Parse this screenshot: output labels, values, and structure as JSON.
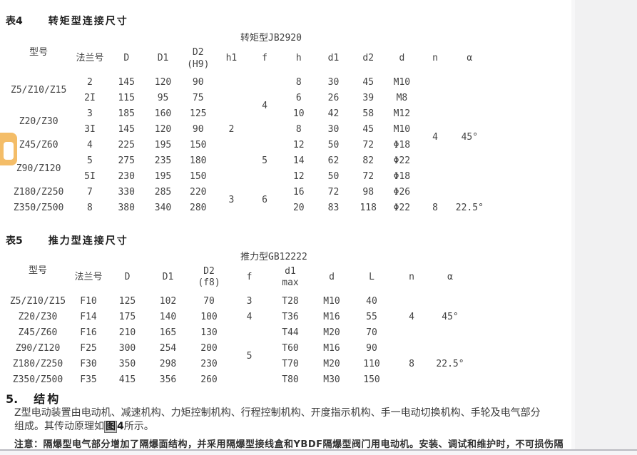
{
  "table4": {
    "caption_label": "表4",
    "caption_title": "转矩型连接尺寸",
    "subtitle": "转矩型JB2920",
    "headers": [
      "型号",
      "法兰号",
      "D",
      "D1",
      "D2\n(H9)",
      "h1",
      "f",
      "h",
      "d1",
      "d2",
      "d",
      "n",
      "α"
    ],
    "rows": [
      [
        {
          "t": "Z5/Z10/Z15",
          "rs": 2
        },
        {
          "t": "2"
        },
        {
          "t": "145"
        },
        {
          "t": "120"
        },
        {
          "t": "90"
        },
        {
          "t": "2",
          "rs": 7
        },
        {
          "t": "4",
          "rs": 4
        },
        {
          "t": "8"
        },
        {
          "t": "30"
        },
        {
          "t": "45"
        },
        {
          "t": "M10"
        },
        {
          "t": "4",
          "rs": 8
        },
        {
          "t": "45°",
          "rs": 8
        }
      ],
      [
        {
          "t": "2I"
        },
        {
          "t": "115"
        },
        {
          "t": "95"
        },
        {
          "t": "75"
        },
        {
          "t": "6"
        },
        {
          "t": "26"
        },
        {
          "t": "39"
        },
        {
          "t": "M8"
        }
      ],
      [
        {
          "t": "Z20/Z30",
          "rs": 2
        },
        {
          "t": "3"
        },
        {
          "t": "185"
        },
        {
          "t": "160"
        },
        {
          "t": "125"
        },
        {
          "t": "10"
        },
        {
          "t": "42"
        },
        {
          "t": "58"
        },
        {
          "t": "M12"
        }
      ],
      [
        {
          "t": "3I"
        },
        {
          "t": "145"
        },
        {
          "t": "120"
        },
        {
          "t": "90"
        },
        {
          "t": "8"
        },
        {
          "t": "30"
        },
        {
          "t": "45"
        },
        {
          "t": "M10"
        }
      ],
      [
        {
          "t": "Z45/Z60"
        },
        {
          "t": "4"
        },
        {
          "t": "225"
        },
        {
          "t": "195"
        },
        {
          "t": "150"
        },
        {
          "t": "5",
          "rs": 3
        },
        {
          "t": "12"
        },
        {
          "t": "50"
        },
        {
          "t": "72"
        },
        {
          "t": "Φ18"
        }
      ],
      [
        {
          "t": "Z90/Z120",
          "rs": 2
        },
        {
          "t": "5"
        },
        {
          "t": "275"
        },
        {
          "t": "235"
        },
        {
          "t": "180"
        },
        {
          "t": "14"
        },
        {
          "t": "62"
        },
        {
          "t": "82"
        },
        {
          "t": "Φ22"
        }
      ],
      [
        {
          "t": "5I"
        },
        {
          "t": "230"
        },
        {
          "t": "195"
        },
        {
          "t": "150"
        },
        {
          "t": "12"
        },
        {
          "t": "50"
        },
        {
          "t": "72"
        },
        {
          "t": "Φ18"
        }
      ],
      [
        {
          "t": "Z180/Z250"
        },
        {
          "t": "7"
        },
        {
          "t": "330"
        },
        {
          "t": "285"
        },
        {
          "t": "220"
        },
        {
          "t": "3",
          "rs": 2
        },
        {
          "t": "6",
          "rs": 2
        },
        {
          "t": "16"
        },
        {
          "t": "72"
        },
        {
          "t": "98"
        },
        {
          "t": "Φ26"
        }
      ],
      [
        {
          "t": "Z350/Z500"
        },
        {
          "t": "8"
        },
        {
          "t": "380"
        },
        {
          "t": "340"
        },
        {
          "t": "280"
        },
        {
          "t": "20"
        },
        {
          "t": "83"
        },
        {
          "t": "118"
        },
        {
          "t": "Φ22"
        },
        {
          "t": "8"
        },
        {
          "t": "22.5°"
        }
      ]
    ]
  },
  "table5": {
    "caption_label": "表5",
    "caption_title": "推力型连接尺寸",
    "subtitle": "推力型GB12222",
    "headers": [
      "型号",
      "法兰号",
      "D",
      "D1",
      "D2\n(f8)",
      "f",
      "d1\nmax",
      "d",
      "L",
      "n",
      "α"
    ],
    "rows": [
      [
        {
          "t": "Z5/Z10/Z15"
        },
        {
          "t": "F10"
        },
        {
          "t": "125"
        },
        {
          "t": "102"
        },
        {
          "t": "70"
        },
        {
          "t": "3"
        },
        {
          "t": "T28"
        },
        {
          "t": "M10"
        },
        {
          "t": "40"
        },
        {
          "t": "4",
          "rs": 3
        },
        {
          "t": "45°",
          "rs": 3
        }
      ],
      [
        {
          "t": "Z20/Z30"
        },
        {
          "t": "F14"
        },
        {
          "t": "175"
        },
        {
          "t": "140"
        },
        {
          "t": "100"
        },
        {
          "t": "4"
        },
        {
          "t": "T36"
        },
        {
          "t": "M16"
        },
        {
          "t": "55"
        }
      ],
      [
        {
          "t": "Z45/Z60"
        },
        {
          "t": "F16"
        },
        {
          "t": "210"
        },
        {
          "t": "165"
        },
        {
          "t": "130"
        },
        {
          "t": "5",
          "rs": 4
        },
        {
          "t": "T44"
        },
        {
          "t": "M20"
        },
        {
          "t": "70"
        }
      ],
      [
        {
          "t": "Z90/Z120"
        },
        {
          "t": "F25"
        },
        {
          "t": "300"
        },
        {
          "t": "254"
        },
        {
          "t": "200"
        },
        {
          "t": "T60"
        },
        {
          "t": "M16"
        },
        {
          "t": "90"
        },
        {
          "t": "8",
          "rs": 3
        },
        {
          "t": "22.5°",
          "rs": 3
        }
      ],
      [
        {
          "t": "Z180/Z250"
        },
        {
          "t": "F30"
        },
        {
          "t": "350"
        },
        {
          "t": "298"
        },
        {
          "t": "230"
        },
        {
          "t": "T70"
        },
        {
          "t": "M20"
        },
        {
          "t": "110"
        }
      ],
      [
        {
          "t": "Z350/Z500"
        },
        {
          "t": "F35"
        },
        {
          "t": "415"
        },
        {
          "t": "356"
        },
        {
          "t": "260"
        },
        {
          "t": "T80"
        },
        {
          "t": "M30"
        },
        {
          "t": "150"
        }
      ]
    ]
  },
  "section5": {
    "number": "5.",
    "title": "结构",
    "body_line1": "Z型电动装置由电动机、减速机构、力矩控制机构、行程控制机构、开度指示机构、手一电动切换机构、手轮及电气部分",
    "body_line2_pre": "组成。其传动原理如",
    "figure_char": "图",
    "figure_num": "4",
    "body_line2_post": "所示。",
    "note": "注意：隔爆型电气部分增加了隔爆面结构，并采用隔爆型接线盒和YBDF隔爆型阀门用电动机。安装、调试和维护时，不可损伤隔"
  },
  "colors": {
    "badge_orange": "#f4bd68",
    "margin_gray": "#f1f1f2",
    "rule_gray": "#babac1"
  }
}
